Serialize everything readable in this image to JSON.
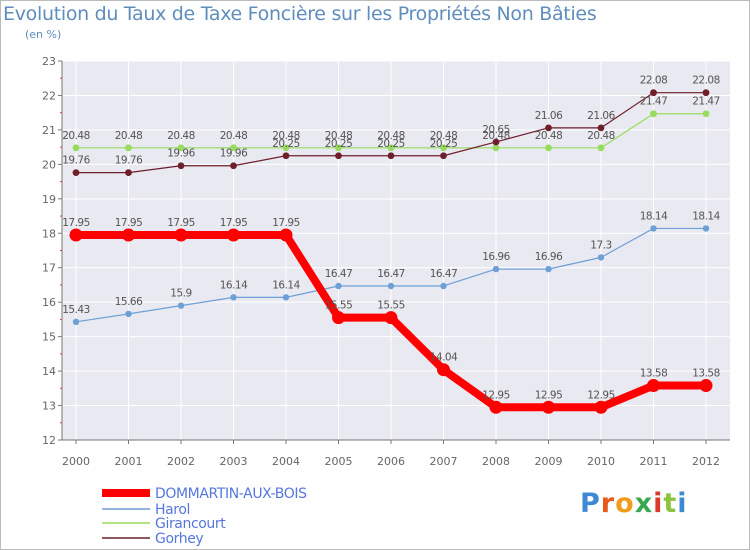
{
  "header": {
    "title": "Evolution du Taux de Taxe Foncière sur les Propriétés Non Bâties",
    "unit": "(en %)"
  },
  "logo": {
    "text": "Proxiti",
    "letters": [
      "P",
      "r",
      "o",
      "x",
      "i",
      "t",
      "i"
    ]
  },
  "chart_data": {
    "type": "line",
    "title": "Evolution du Taux de Taxe Foncière sur les Propriétés Non Bâties",
    "ylabel": "(en %)",
    "xlabel": "",
    "ylim": [
      12,
      23
    ],
    "yticks": [
      12,
      13,
      14,
      15,
      16,
      17,
      18,
      19,
      20,
      21,
      22,
      23
    ],
    "grid": true,
    "legend_position": "bottom-left",
    "categories": [
      "2000",
      "2001",
      "2002",
      "2003",
      "2004",
      "2005",
      "2006",
      "2007",
      "2008",
      "2009",
      "2010",
      "2011",
      "2012"
    ],
    "series": [
      {
        "name": "DOMMARTIN-AUX-BOIS",
        "color": "#ff0000",
        "labels": [
          "17.95",
          "17.95",
          "17.95",
          "17.95",
          "17.95",
          "15.55",
          "15.55",
          "14.04",
          "12.95",
          "12.95",
          "12.95",
          "13.58",
          "13.58"
        ],
        "values": [
          17.95,
          17.95,
          17.95,
          17.95,
          17.95,
          15.55,
          15.55,
          14.04,
          12.95,
          12.95,
          12.95,
          13.58,
          13.58
        ]
      },
      {
        "name": "Harol",
        "color": "#6ea0d6",
        "labels": [
          "15.43",
          "15.66",
          "15.9",
          "16.14",
          "16.14",
          "16.47",
          "16.47",
          "16.47",
          "16.96",
          "16.96",
          "17.3",
          "18.14",
          "18.14"
        ],
        "values": [
          15.43,
          15.66,
          15.9,
          16.14,
          16.14,
          16.47,
          16.47,
          16.47,
          16.96,
          16.96,
          17.3,
          18.14,
          18.14
        ]
      },
      {
        "name": "Girancourt",
        "color": "#98dc5e",
        "labels": [
          "20.48",
          "20.48",
          "20.48",
          "20.48",
          "20.48",
          "20.48",
          "20.48",
          "20.48",
          "20.48",
          "20.48",
          "20.48",
          "21.47",
          "21.47"
        ],
        "values": [
          20.48,
          20.48,
          20.48,
          20.48,
          20.48,
          20.48,
          20.48,
          20.48,
          20.48,
          20.48,
          20.48,
          21.47,
          21.47
        ]
      },
      {
        "name": "Gorhey",
        "color": "#6e1f2a",
        "labels": [
          "19.76",
          "19.76",
          "19.96",
          "19.96",
          "20.25",
          "20.25",
          "20.25",
          "20.25",
          "20.65",
          "21.06",
          "21.06",
          "22.08",
          "22.08"
        ],
        "values": [
          19.76,
          19.76,
          19.96,
          19.96,
          20.25,
          20.25,
          20.25,
          20.25,
          20.65,
          21.06,
          21.06,
          22.08,
          22.08
        ]
      }
    ]
  }
}
